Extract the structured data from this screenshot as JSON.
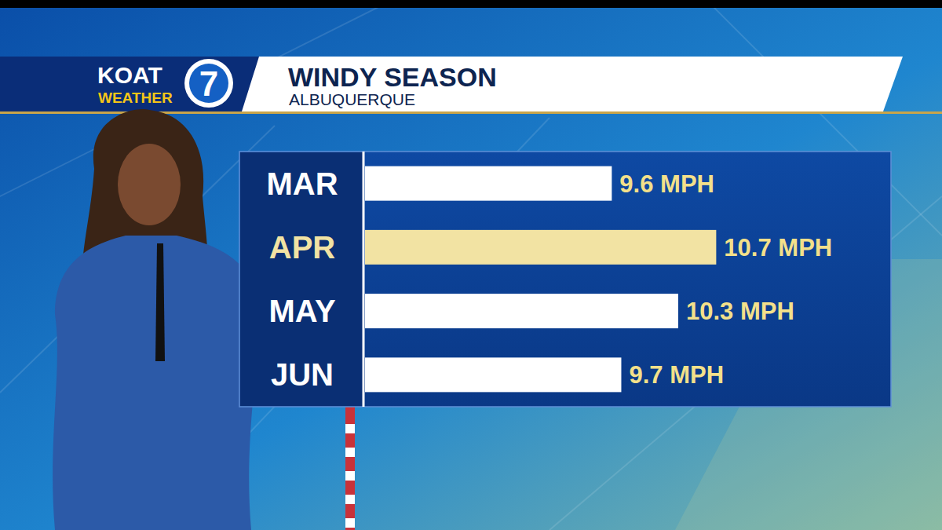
{
  "header": {
    "station": "KOAT",
    "logo_number": "7",
    "section": "WEATHER"
  },
  "chart_data": {
    "type": "bar",
    "orientation": "horizontal",
    "title": "WINDY SEASON",
    "subtitle": "ALBUQUERQUE",
    "categories": [
      "MAR",
      "APR",
      "MAY",
      "JUN"
    ],
    "values": [
      9.6,
      10.7,
      10.3,
      9.7
    ],
    "value_labels": [
      "9.6 MPH",
      "10.7 MPH",
      "10.3 MPH",
      "9.7 MPH"
    ],
    "colors": [
      "#ffffff",
      "#f2e3a3",
      "#ffffff",
      "#ffffff"
    ],
    "xlim": [
      7,
      12.5
    ],
    "data_labels": true,
    "tick_labels": false,
    "grid": false
  }
}
